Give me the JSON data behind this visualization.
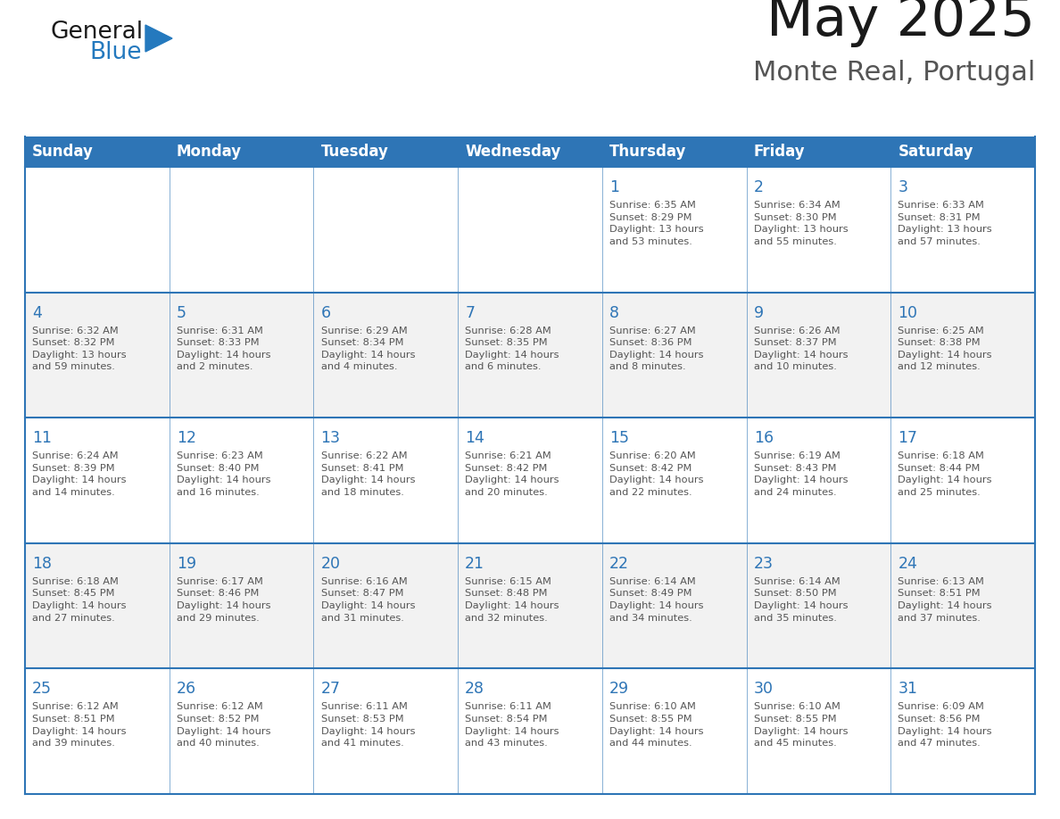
{
  "title": "May 2025",
  "subtitle": "Monte Real, Portugal",
  "header_bg_color": "#2E75B6",
  "header_text_color": "#FFFFFF",
  "cell_bg_even": "#FFFFFF",
  "cell_bg_odd": "#F2F2F2",
  "grid_color": "#2E75B6",
  "days_of_week": [
    "Sunday",
    "Monday",
    "Tuesday",
    "Wednesday",
    "Thursday",
    "Friday",
    "Saturday"
  ],
  "title_color": "#1a1a1a",
  "subtitle_color": "#555555",
  "day_number_color": "#2E75B6",
  "general_text_color": "#555555",
  "logo_general_color": "#1a1a1a",
  "logo_blue_color": "#2479BE",
  "calendar_data": [
    [
      {
        "day": "",
        "text": ""
      },
      {
        "day": "",
        "text": ""
      },
      {
        "day": "",
        "text": ""
      },
      {
        "day": "",
        "text": ""
      },
      {
        "day": "1",
        "text": "Sunrise: 6:35 AM\nSunset: 8:29 PM\nDaylight: 13 hours\nand 53 minutes."
      },
      {
        "day": "2",
        "text": "Sunrise: 6:34 AM\nSunset: 8:30 PM\nDaylight: 13 hours\nand 55 minutes."
      },
      {
        "day": "3",
        "text": "Sunrise: 6:33 AM\nSunset: 8:31 PM\nDaylight: 13 hours\nand 57 minutes."
      }
    ],
    [
      {
        "day": "4",
        "text": "Sunrise: 6:32 AM\nSunset: 8:32 PM\nDaylight: 13 hours\nand 59 minutes."
      },
      {
        "day": "5",
        "text": "Sunrise: 6:31 AM\nSunset: 8:33 PM\nDaylight: 14 hours\nand 2 minutes."
      },
      {
        "day": "6",
        "text": "Sunrise: 6:29 AM\nSunset: 8:34 PM\nDaylight: 14 hours\nand 4 minutes."
      },
      {
        "day": "7",
        "text": "Sunrise: 6:28 AM\nSunset: 8:35 PM\nDaylight: 14 hours\nand 6 minutes."
      },
      {
        "day": "8",
        "text": "Sunrise: 6:27 AM\nSunset: 8:36 PM\nDaylight: 14 hours\nand 8 minutes."
      },
      {
        "day": "9",
        "text": "Sunrise: 6:26 AM\nSunset: 8:37 PM\nDaylight: 14 hours\nand 10 minutes."
      },
      {
        "day": "10",
        "text": "Sunrise: 6:25 AM\nSunset: 8:38 PM\nDaylight: 14 hours\nand 12 minutes."
      }
    ],
    [
      {
        "day": "11",
        "text": "Sunrise: 6:24 AM\nSunset: 8:39 PM\nDaylight: 14 hours\nand 14 minutes."
      },
      {
        "day": "12",
        "text": "Sunrise: 6:23 AM\nSunset: 8:40 PM\nDaylight: 14 hours\nand 16 minutes."
      },
      {
        "day": "13",
        "text": "Sunrise: 6:22 AM\nSunset: 8:41 PM\nDaylight: 14 hours\nand 18 minutes."
      },
      {
        "day": "14",
        "text": "Sunrise: 6:21 AM\nSunset: 8:42 PM\nDaylight: 14 hours\nand 20 minutes."
      },
      {
        "day": "15",
        "text": "Sunrise: 6:20 AM\nSunset: 8:42 PM\nDaylight: 14 hours\nand 22 minutes."
      },
      {
        "day": "16",
        "text": "Sunrise: 6:19 AM\nSunset: 8:43 PM\nDaylight: 14 hours\nand 24 minutes."
      },
      {
        "day": "17",
        "text": "Sunrise: 6:18 AM\nSunset: 8:44 PM\nDaylight: 14 hours\nand 25 minutes."
      }
    ],
    [
      {
        "day": "18",
        "text": "Sunrise: 6:18 AM\nSunset: 8:45 PM\nDaylight: 14 hours\nand 27 minutes."
      },
      {
        "day": "19",
        "text": "Sunrise: 6:17 AM\nSunset: 8:46 PM\nDaylight: 14 hours\nand 29 minutes."
      },
      {
        "day": "20",
        "text": "Sunrise: 6:16 AM\nSunset: 8:47 PM\nDaylight: 14 hours\nand 31 minutes."
      },
      {
        "day": "21",
        "text": "Sunrise: 6:15 AM\nSunset: 8:48 PM\nDaylight: 14 hours\nand 32 minutes."
      },
      {
        "day": "22",
        "text": "Sunrise: 6:14 AM\nSunset: 8:49 PM\nDaylight: 14 hours\nand 34 minutes."
      },
      {
        "day": "23",
        "text": "Sunrise: 6:14 AM\nSunset: 8:50 PM\nDaylight: 14 hours\nand 35 minutes."
      },
      {
        "day": "24",
        "text": "Sunrise: 6:13 AM\nSunset: 8:51 PM\nDaylight: 14 hours\nand 37 minutes."
      }
    ],
    [
      {
        "day": "25",
        "text": "Sunrise: 6:12 AM\nSunset: 8:51 PM\nDaylight: 14 hours\nand 39 minutes."
      },
      {
        "day": "26",
        "text": "Sunrise: 6:12 AM\nSunset: 8:52 PM\nDaylight: 14 hours\nand 40 minutes."
      },
      {
        "day": "27",
        "text": "Sunrise: 6:11 AM\nSunset: 8:53 PM\nDaylight: 14 hours\nand 41 minutes."
      },
      {
        "day": "28",
        "text": "Sunrise: 6:11 AM\nSunset: 8:54 PM\nDaylight: 14 hours\nand 43 minutes."
      },
      {
        "day": "29",
        "text": "Sunrise: 6:10 AM\nSunset: 8:55 PM\nDaylight: 14 hours\nand 44 minutes."
      },
      {
        "day": "30",
        "text": "Sunrise: 6:10 AM\nSunset: 8:55 PM\nDaylight: 14 hours\nand 45 minutes."
      },
      {
        "day": "31",
        "text": "Sunrise: 6:09 AM\nSunset: 8:56 PM\nDaylight: 14 hours\nand 47 minutes."
      }
    ]
  ]
}
